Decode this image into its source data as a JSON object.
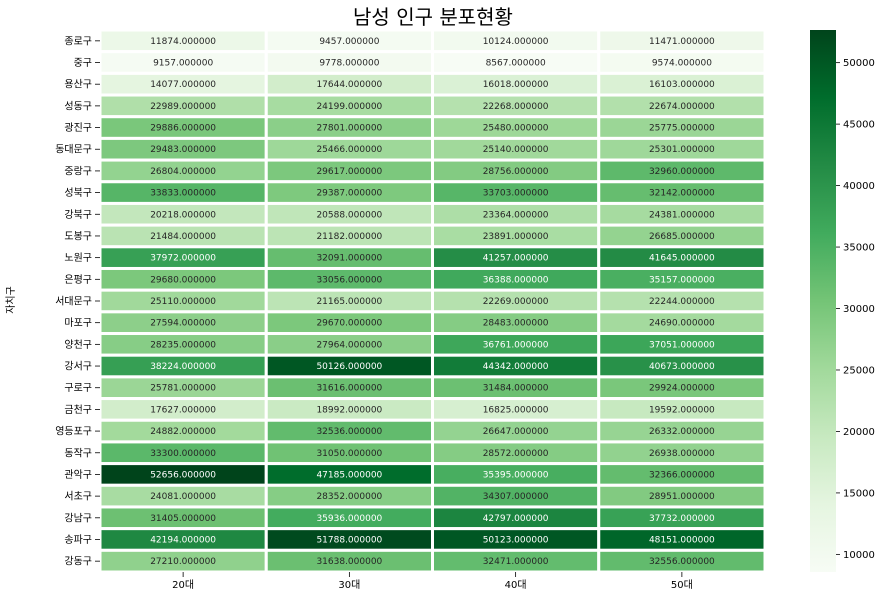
{
  "chart_data": {
    "type": "heatmap",
    "title": "남성 인구 분포현황",
    "ylabel": "자치구",
    "xlabel": "",
    "x_categories": [
      "20대",
      "30대",
      "40대",
      "50대"
    ],
    "y_categories": [
      "종로구",
      "중구",
      "용산구",
      "성동구",
      "광진구",
      "동대문구",
      "중랑구",
      "성북구",
      "강북구",
      "도봉구",
      "노원구",
      "은평구",
      "서대문구",
      "마포구",
      "양천구",
      "강서구",
      "구로구",
      "금천구",
      "영등포구",
      "동작구",
      "관악구",
      "서초구",
      "강남구",
      "송파구",
      "강동구"
    ],
    "values": [
      [
        11874,
        9457,
        10124,
        11471
      ],
      [
        9157,
        9778,
        8567,
        9574
      ],
      [
        14077,
        17644,
        16018,
        16103
      ],
      [
        22989,
        24199,
        22268,
        22674
      ],
      [
        29886,
        27801,
        25480,
        25775
      ],
      [
        29483,
        25466,
        25140,
        25301
      ],
      [
        26804,
        29617,
        28756,
        32960
      ],
      [
        33833,
        29387,
        33703,
        32142
      ],
      [
        20218,
        20588,
        23364,
        24381
      ],
      [
        21484,
        21182,
        23891,
        26685
      ],
      [
        37972,
        32091,
        41257,
        41645
      ],
      [
        29680,
        33056,
        36388,
        35157
      ],
      [
        25110,
        21165,
        22269,
        22244
      ],
      [
        27594,
        29670,
        28483,
        24690
      ],
      [
        28235,
        27964,
        36761,
        37051
      ],
      [
        38224,
        50126,
        44342,
        40673
      ],
      [
        25781,
        31616,
        31484,
        29924
      ],
      [
        17627,
        18992,
        16825,
        19592
      ],
      [
        24882,
        32536,
        26647,
        26332
      ],
      [
        33300,
        31050,
        28572,
        26938
      ],
      [
        52656,
        47185,
        35395,
        32366
      ],
      [
        24081,
        28352,
        34307,
        28951
      ],
      [
        31405,
        35936,
        42797,
        37732
      ],
      [
        42194,
        51788,
        50123,
        48151
      ],
      [
        27210,
        31638,
        32471,
        32556
      ]
    ],
    "value_format": "%.6f",
    "colormap": "Greens",
    "vmin": 8567,
    "vmax": 52656,
    "colorbar_ticks": [
      10000,
      15000,
      20000,
      25000,
      30000,
      35000,
      40000,
      45000,
      50000
    ]
  }
}
